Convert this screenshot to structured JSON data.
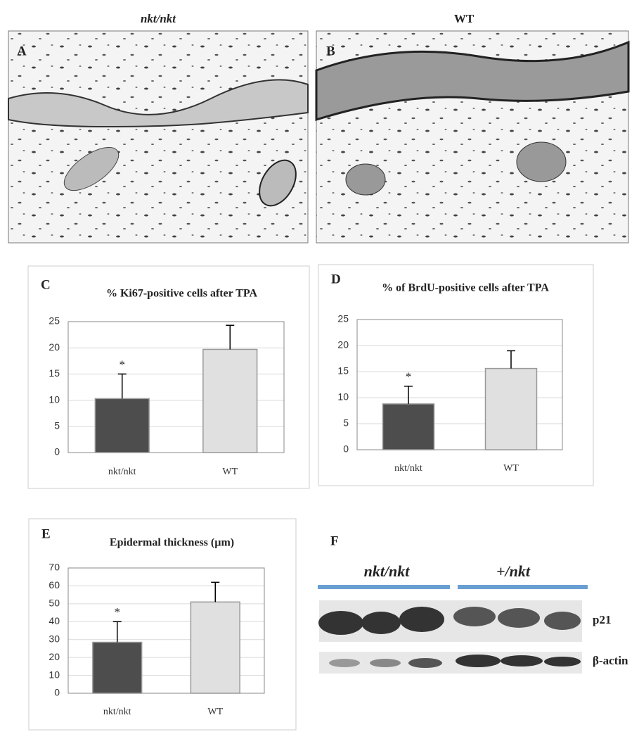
{
  "histology": [
    {
      "panel": "A",
      "genotype": "nkt/nkt"
    },
    {
      "panel": "B",
      "genotype": "WT"
    }
  ],
  "chart_data": [
    {
      "type": "bar",
      "panel": "C",
      "title": "% Ki67-positive cells after TPA",
      "categories": [
        "nkt/nkt",
        "WT"
      ],
      "values": [
        10.3,
        19.7
      ],
      "errors": [
        4.7,
        4.6
      ],
      "markers": [
        "*",
        null
      ],
      "colors": [
        "#4d4d4d",
        "#e0e0e0"
      ],
      "ylim": [
        0,
        25
      ],
      "yticks": [
        0,
        5,
        10,
        15,
        20,
        25
      ],
      "grid": true
    },
    {
      "type": "bar",
      "panel": "D",
      "title": "% of BrdU-positive cells after TPA",
      "categories": [
        "nkt/nkt",
        "WT"
      ],
      "values": [
        8.8,
        15.6
      ],
      "errors": [
        3.4,
        3.4
      ],
      "markers": [
        "*",
        null
      ],
      "colors": [
        "#4d4d4d",
        "#e0e0e0"
      ],
      "ylim": [
        0,
        25
      ],
      "yticks": [
        0,
        5,
        10,
        15,
        20,
        25
      ],
      "grid": true
    },
    {
      "type": "bar",
      "panel": "E",
      "title": "Epidermal thickness (µm)",
      "categories": [
        "nkt/nkt",
        "WT"
      ],
      "values": [
        28.5,
        51
      ],
      "errors": [
        11.5,
        11
      ],
      "markers": [
        "*",
        null
      ],
      "colors": [
        "#4d4d4d",
        "#e0e0e0"
      ],
      "ylim": [
        0,
        70
      ],
      "yticks": [
        0,
        10,
        20,
        30,
        40,
        50,
        60,
        70
      ],
      "grid": true
    }
  ],
  "blot": {
    "panel": "F",
    "groups": [
      "nkt/nkt",
      "+/nkt"
    ],
    "bands": [
      "p21",
      "β-actin"
    ]
  }
}
